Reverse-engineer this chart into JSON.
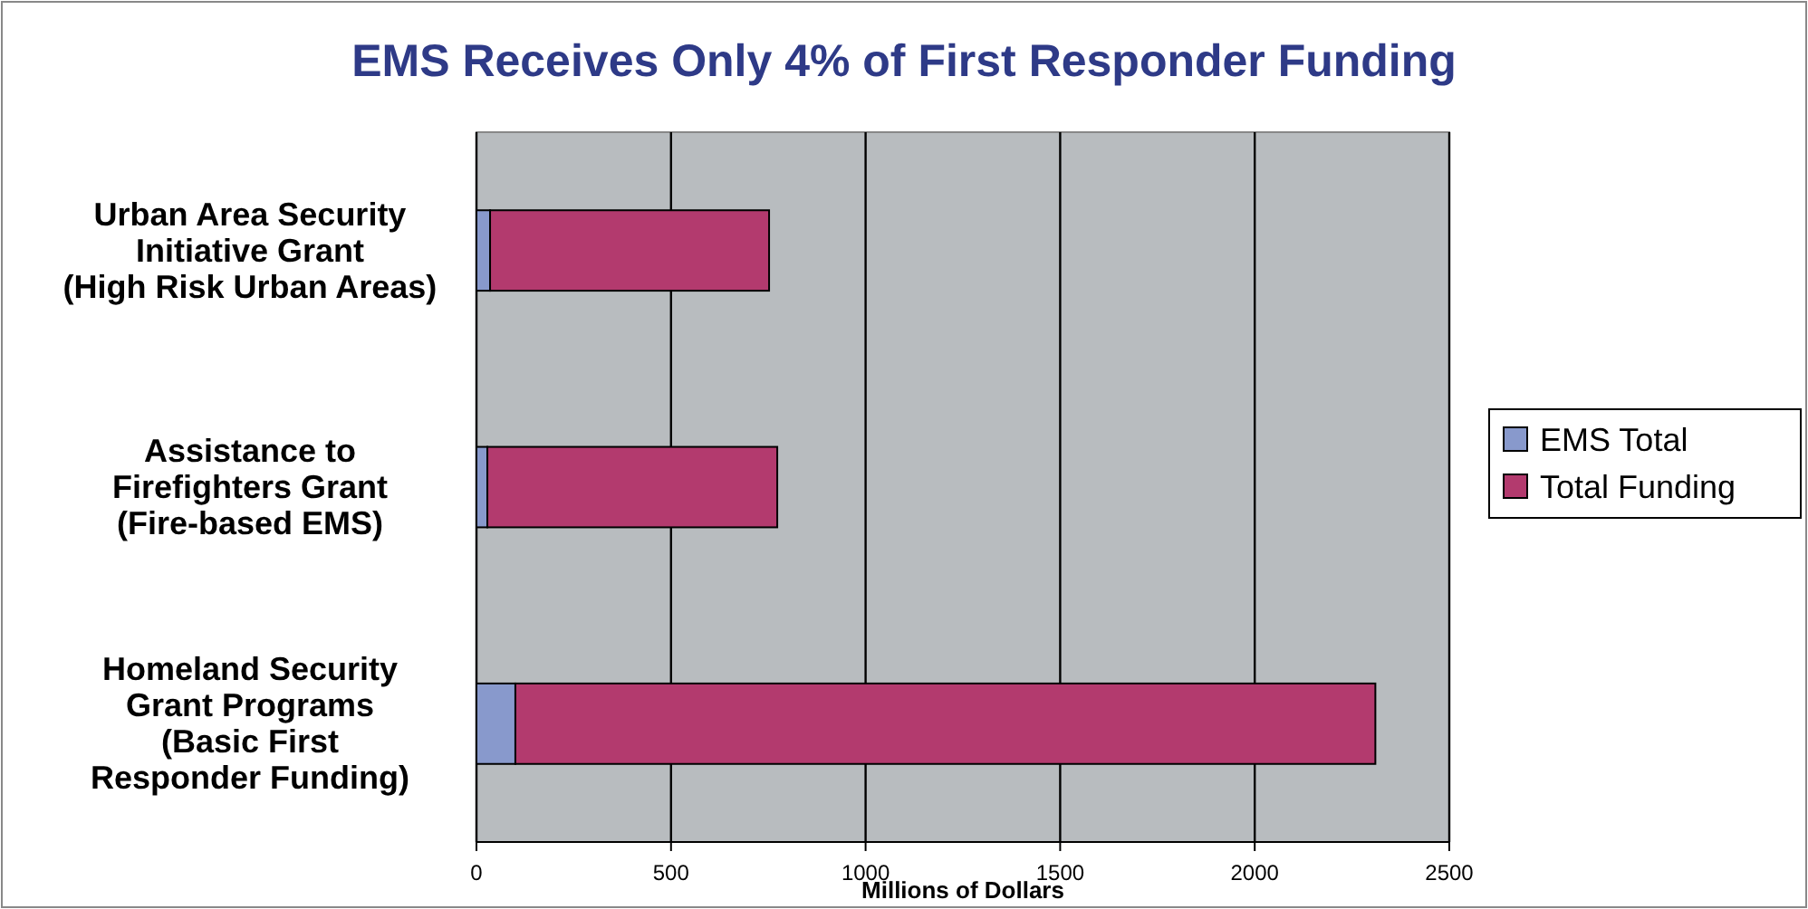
{
  "chart_data": {
    "type": "bar",
    "orientation": "horizontal",
    "stacked": true,
    "title": "EMS Receives Only 4% of First Responder Funding",
    "xlabel": "Millions of Dollars",
    "categories": [
      "Urban Area Security\nInitiative Grant\n(High Risk Urban Areas)",
      "Assistance to\nFirefighters Grant\n(Fire-based EMS)",
      "Homeland Security\nGrant Programs\n(Basic First\nResponder Funding)"
    ],
    "series": [
      {
        "name": "EMS Total",
        "color": "#8899cc",
        "values": [
          35,
          28,
          100
        ]
      },
      {
        "name": "Total Funding",
        "color": "#b33a6e",
        "values": [
          717,
          745,
          2210
        ]
      }
    ],
    "xlim": [
      0,
      2500
    ],
    "xticks": [
      0,
      500,
      1000,
      1500,
      2000,
      2500
    ],
    "grid": "x",
    "legend": "right"
  }
}
